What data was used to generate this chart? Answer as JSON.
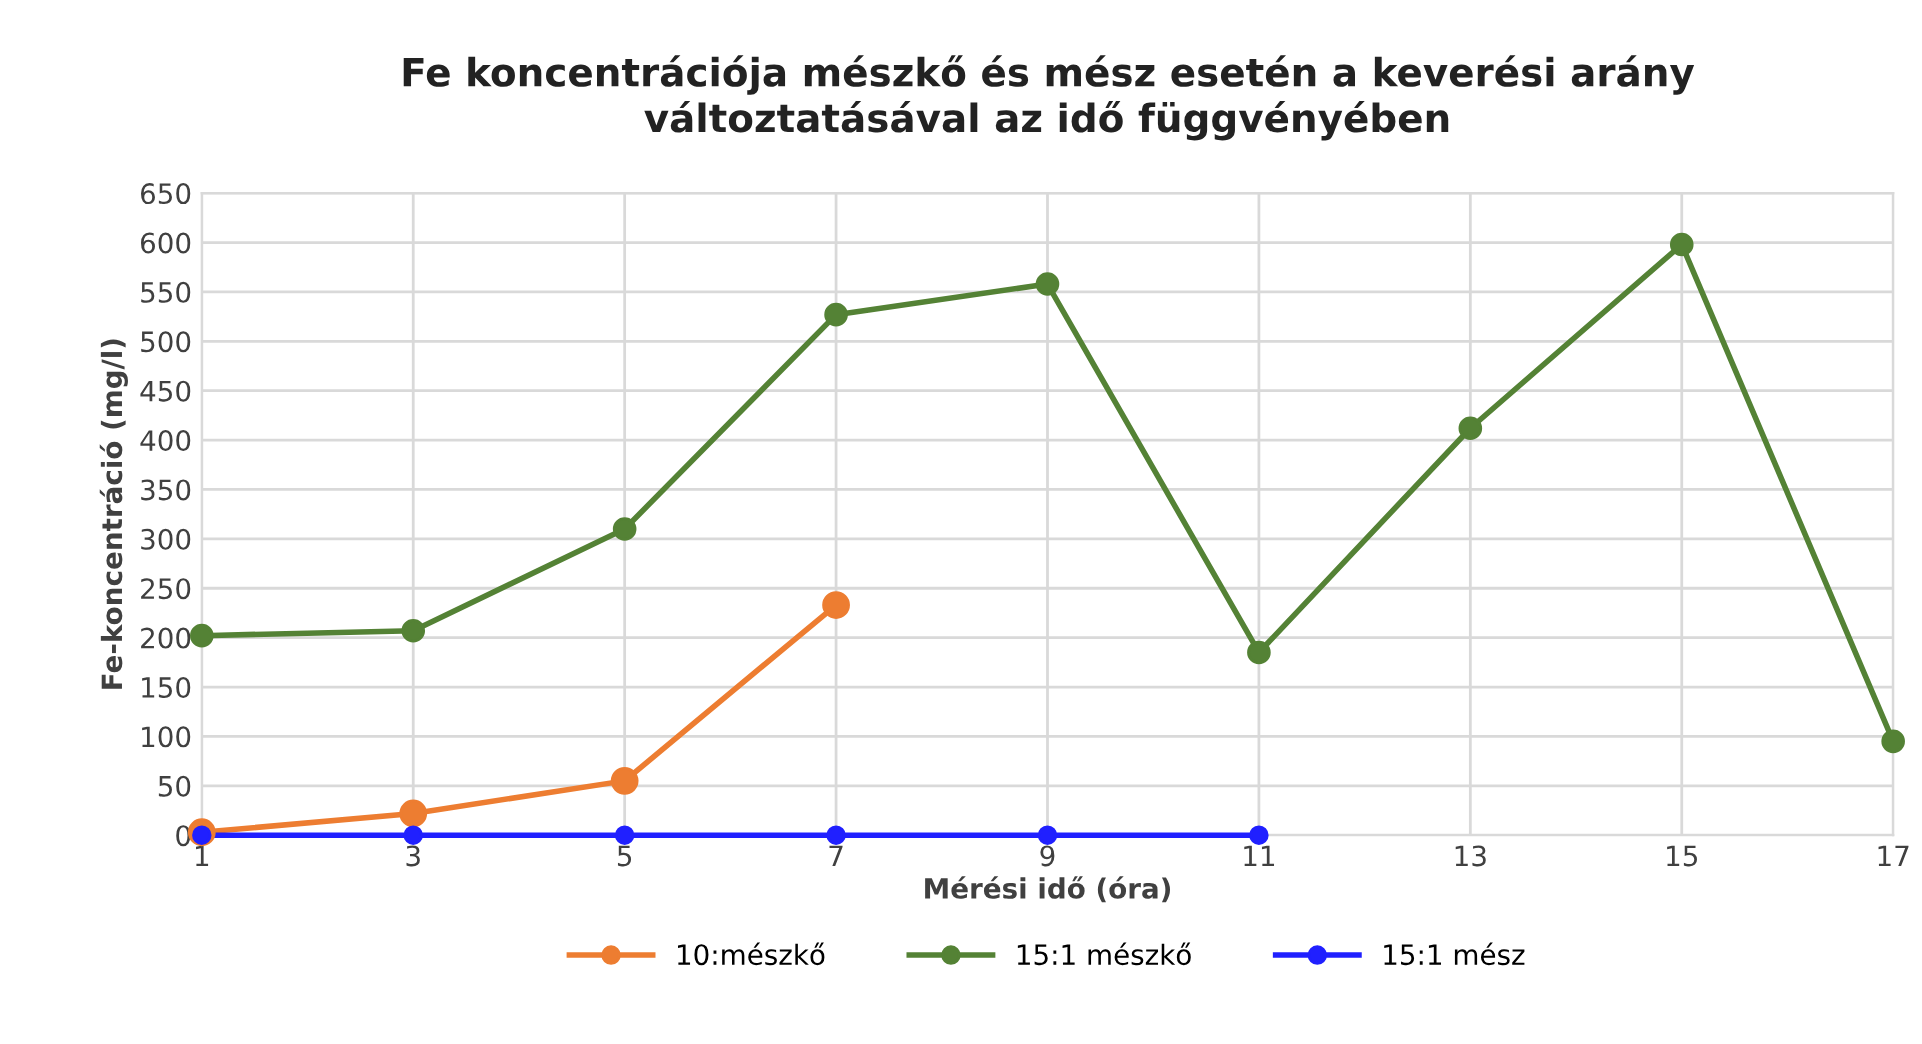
{
  "chart_data": {
    "type": "line",
    "title": "Fe koncentrációja mészkő és mész esetén a keverési arány\nváltoztatásával az idő függvényében",
    "xlabel": "Mérési idő (óra)",
    "ylabel": "Fe-koncentráció (mg/l)",
    "xlim": [
      1,
      17
    ],
    "xticks": [
      1,
      3,
      5,
      7,
      9,
      11,
      13,
      15,
      17
    ],
    "ylim": [
      0,
      650
    ],
    "yticks": [
      0,
      50,
      100,
      150,
      200,
      250,
      300,
      350,
      400,
      450,
      500,
      550,
      600,
      650
    ],
    "grid": true,
    "legend": "bottom",
    "marker": "circle",
    "line_style": "solid",
    "series": [
      {
        "name": "10:mészkő",
        "color": "#ed7d31",
        "x": [
          1,
          3,
          5,
          7
        ],
        "values": [
          3,
          22,
          55,
          233
        ]
      },
      {
        "name": "15:1 mészkő",
        "color": "#548235",
        "x": [
          1,
          3,
          5,
          7,
          9,
          11,
          13,
          15,
          17
        ],
        "values": [
          202,
          207,
          310,
          527,
          558,
          185,
          412,
          598,
          95
        ]
      },
      {
        "name": "15:1 mész",
        "color": "#2020ff",
        "x": [
          1,
          3,
          5,
          7,
          9,
          11
        ],
        "values": [
          0,
          0,
          0,
          0,
          0,
          0
        ]
      }
    ]
  }
}
